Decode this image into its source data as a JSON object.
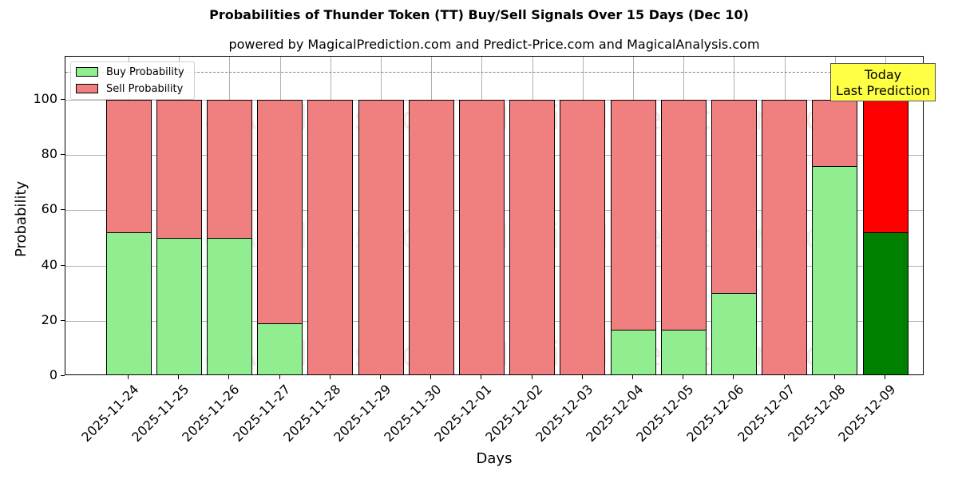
{
  "chart_data": {
    "type": "bar",
    "stacked": true,
    "title": "Probabilities of Thunder Token (TT) Buy/Sell Signals Over 15 Days (Dec 10)",
    "subtitle": "powered by MagicalPrediction.com and Predict-Price.com and MagicalAnalysis.com",
    "xlabel": "Days",
    "ylabel": "Probability",
    "ylim": [
      0,
      115
    ],
    "yticks": [
      0,
      20,
      40,
      60,
      80,
      100
    ],
    "grid": true,
    "legend_position": "upper left",
    "reference_line": {
      "y": 110,
      "style": "dashed",
      "color": "#808080"
    },
    "categories": [
      "2025-11-24",
      "2025-11-25",
      "2025-11-26",
      "2025-11-27",
      "2025-11-28",
      "2025-11-29",
      "2025-11-30",
      "2025-12-01",
      "2025-12-02",
      "2025-12-03",
      "2025-12-04",
      "2025-12-05",
      "2025-12-06",
      "2025-12-07",
      "2025-12-08",
      "2025-12-09"
    ],
    "series": [
      {
        "name": "Buy Probability",
        "color": "#90ee90",
        "values": [
          52,
          50,
          50,
          19,
          0,
          0,
          0,
          0,
          0,
          0,
          16.7,
          16.7,
          30,
          0,
          76,
          52
        ]
      },
      {
        "name": "Sell Probability",
        "color": "#f08080",
        "values": [
          48,
          50,
          50,
          81,
          100,
          100,
          100,
          100,
          100,
          100,
          83.3,
          83.3,
          70,
          100,
          24,
          48
        ]
      }
    ],
    "highlight": {
      "index": 15,
      "buy_color": "#008000",
      "sell_color": "#ff0000"
    },
    "annotation": {
      "text_line1": "Today",
      "text_line2": "Last Prediction",
      "background": "#ffff44"
    }
  },
  "legend": {
    "buy": "Buy Probability",
    "sell": "Sell Probability"
  },
  "watermarks": [
    "MagicalAnalysis.com",
    "MagicalPrediction.com"
  ]
}
